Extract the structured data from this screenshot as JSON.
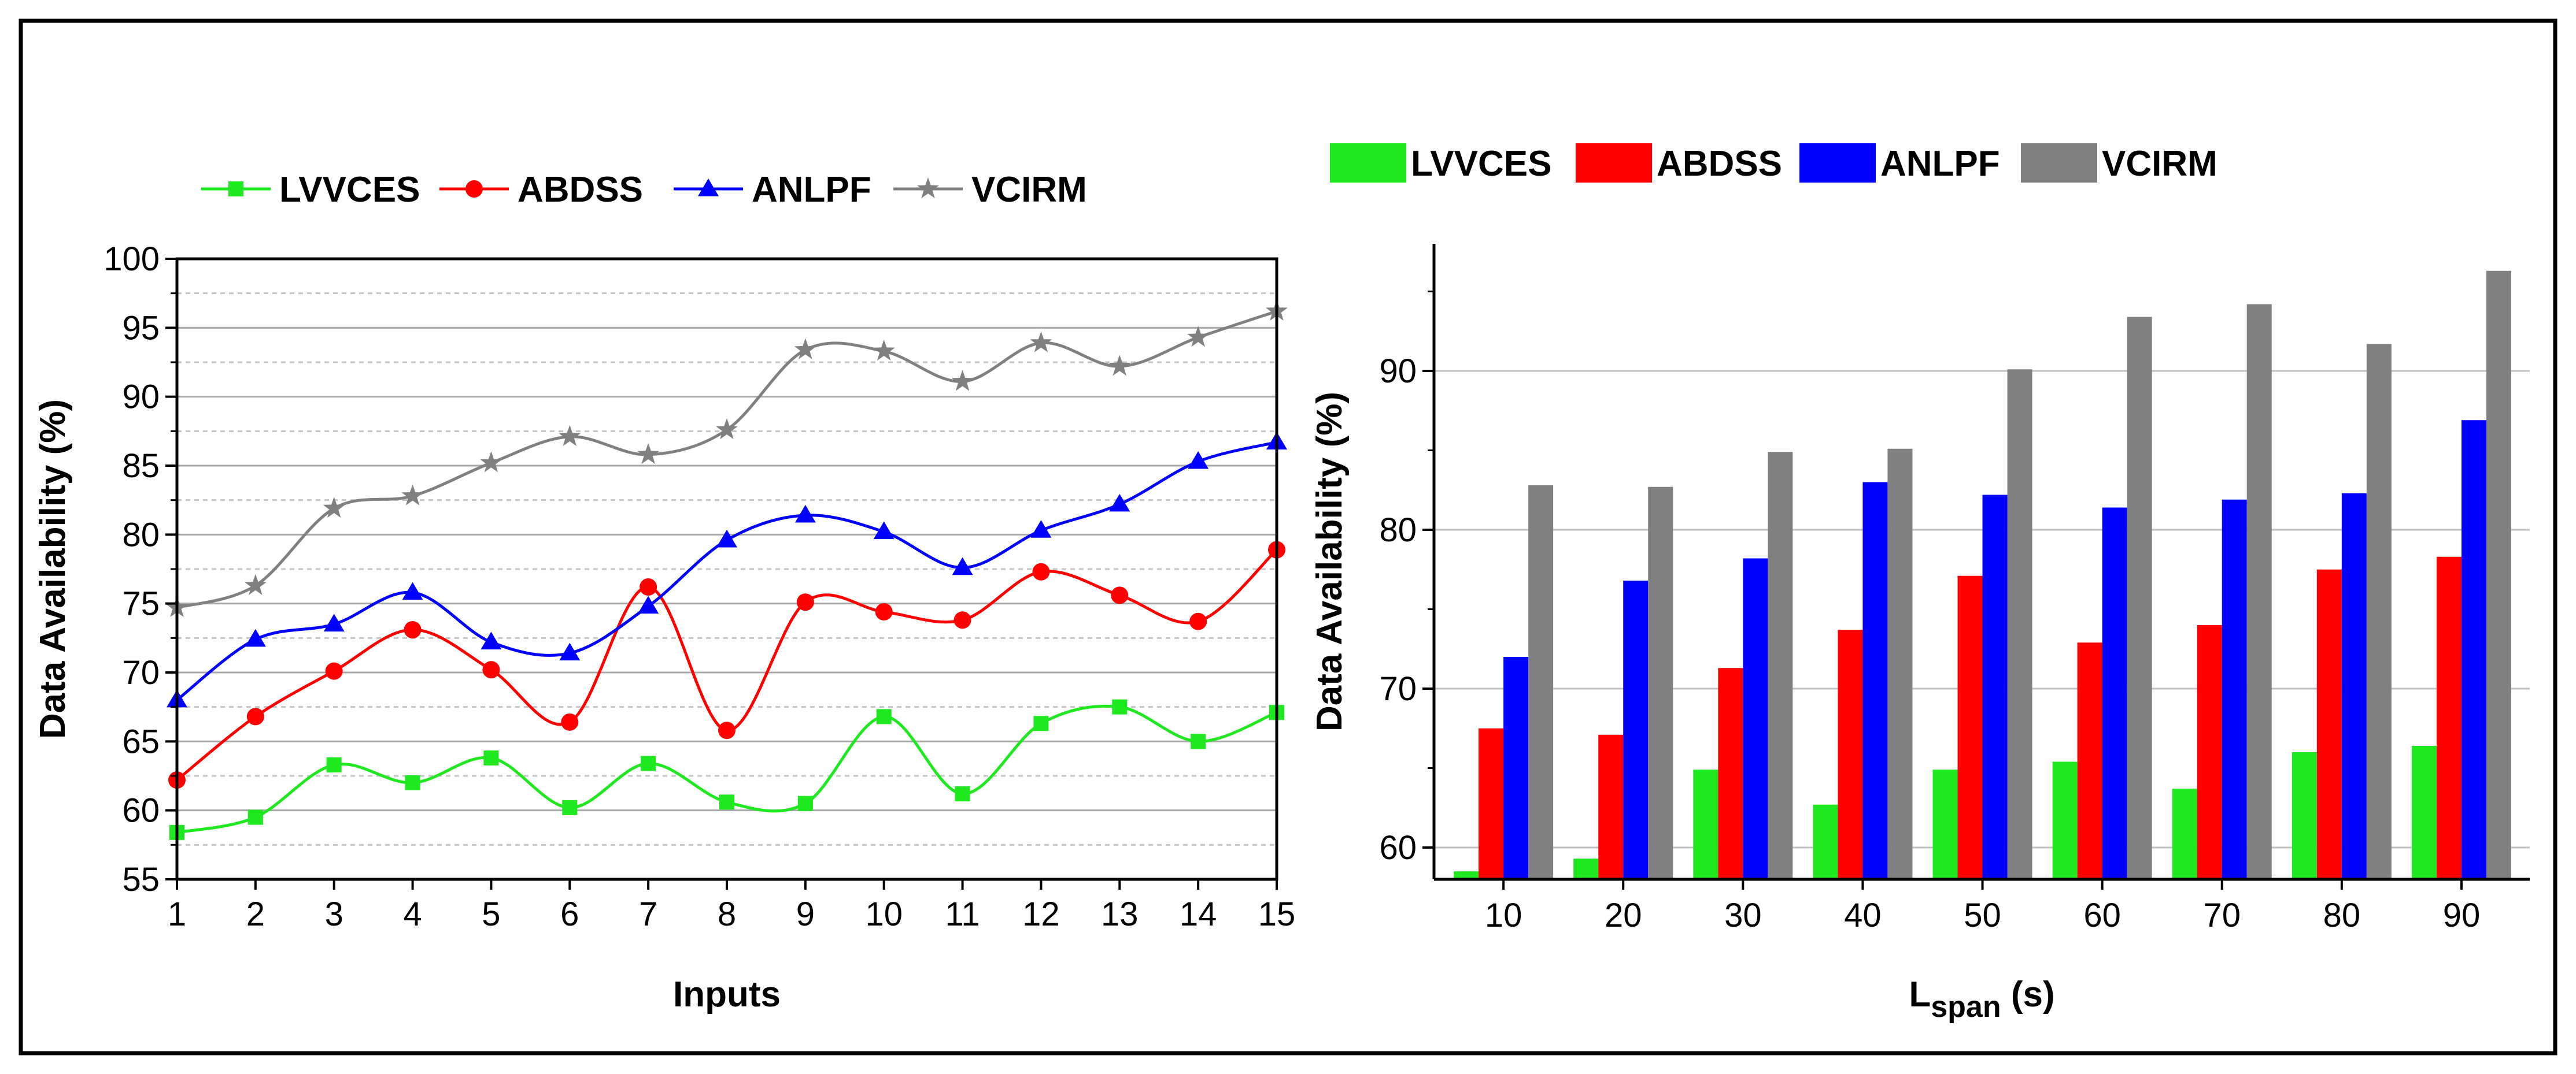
{
  "colors": {
    "LVVCES": "#1ee81e",
    "ABDSS": "#ff0000",
    "ANLPF": "#0000ff",
    "VCIRM": "#808080"
  },
  "chart_data": [
    {
      "type": "line",
      "smooth": true,
      "title": "",
      "xlabel": "Inputs",
      "ylabel": "Data Availability (%)",
      "xlim": [
        1,
        15
      ],
      "ylim": [
        55,
        100
      ],
      "x": [
        1,
        2,
        3,
        4,
        5,
        6,
        7,
        8,
        9,
        10,
        11,
        12,
        13,
        14,
        15
      ],
      "xticks": [
        "1",
        "2",
        "3",
        "4",
        "5",
        "6",
        "7",
        "8",
        "9",
        "10",
        "11",
        "12",
        "13",
        "14",
        "15"
      ],
      "yticks": [
        "55",
        "60",
        "65",
        "70",
        "75",
        "80",
        "85",
        "90",
        "95",
        "100"
      ],
      "grid": true,
      "legend_position": "top",
      "series": [
        {
          "name": "LVVCES",
          "marker": "square",
          "values": [
            58.4,
            59.5,
            63.3,
            62.0,
            63.8,
            60.2,
            63.4,
            60.6,
            60.5,
            66.8,
            61.2,
            66.3,
            67.5,
            65.0,
            67.1
          ]
        },
        {
          "name": "ABDSS",
          "marker": "circle",
          "values": [
            62.2,
            66.8,
            70.1,
            73.1,
            70.2,
            66.4,
            76.2,
            65.8,
            75.1,
            74.4,
            73.8,
            77.3,
            75.6,
            73.7,
            78.9
          ]
        },
        {
          "name": "ANLPF",
          "marker": "triangle",
          "values": [
            68.0,
            72.4,
            73.5,
            75.8,
            72.2,
            71.4,
            74.8,
            79.6,
            81.4,
            80.2,
            77.6,
            80.3,
            82.2,
            85.3,
            86.7
          ]
        },
        {
          "name": "VCIRM",
          "marker": "star",
          "values": [
            74.7,
            76.3,
            81.9,
            82.8,
            85.2,
            87.1,
            85.8,
            87.6,
            93.4,
            93.3,
            91.1,
            93.9,
            92.2,
            94.3,
            96.2
          ]
        }
      ]
    },
    {
      "type": "bar",
      "title": "",
      "xlabel_main": "L",
      "xlabel_sub": "span",
      "xlabel_unit": " (s)",
      "ylabel": "Data Availability (%)",
      "ylim": [
        58,
        98
      ],
      "categories": [
        "10",
        "20",
        "30",
        "40",
        "50",
        "60",
        "70",
        "80",
        "90"
      ],
      "yticks": [
        "60",
        "70",
        "80",
        "90"
      ],
      "grid": true,
      "legend_position": "top",
      "series": [
        {
          "name": "LVVCES",
          "values": [
            58.5,
            59.3,
            64.9,
            62.7,
            64.9,
            65.4,
            63.7,
            66.0,
            66.4
          ]
        },
        {
          "name": "ABDSS",
          "values": [
            67.5,
            67.1,
            71.3,
            73.7,
            77.1,
            72.9,
            74.0,
            77.5,
            78.3
          ]
        },
        {
          "name": "ANLPF",
          "values": [
            72.0,
            76.8,
            78.2,
            83.0,
            82.2,
            81.4,
            81.9,
            82.3,
            86.9
          ]
        },
        {
          "name": "VCIRM",
          "values": [
            82.8,
            82.7,
            84.9,
            85.1,
            90.1,
            93.4,
            94.2,
            91.7,
            96.3
          ]
        }
      ]
    }
  ]
}
